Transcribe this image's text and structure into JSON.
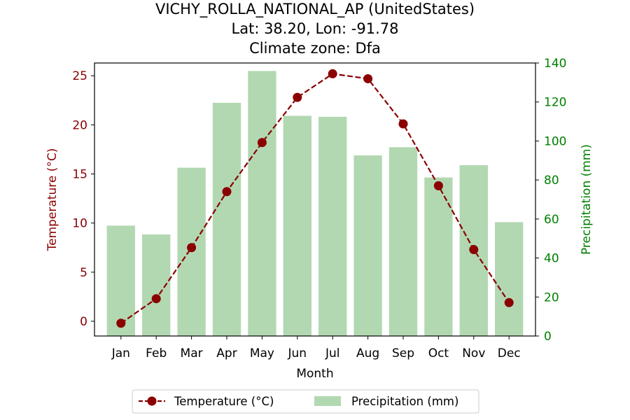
{
  "title": {
    "line1": "VICHY_ROLLA_NATIONAL_AP (UnitedStates)",
    "line2": "Lat: 38.20, Lon: -91.78",
    "line3": "Climate zone: Dfa"
  },
  "colors": {
    "temperature": "#8b0000",
    "precipitation_bar": "#b2d8b2",
    "precipitation_axis": "#008000",
    "axis": "#000000"
  },
  "chart_data": {
    "type": "bar+line",
    "categories": [
      "Jan",
      "Feb",
      "Mar",
      "Apr",
      "May",
      "Jun",
      "Jul",
      "Aug",
      "Sep",
      "Oct",
      "Nov",
      "Dec"
    ],
    "xlabel": "Month",
    "y_left": {
      "label": "Temperature (°C)",
      "range": [
        -1.5,
        26.3
      ],
      "ticks": [
        0,
        5,
        10,
        15,
        20,
        25
      ]
    },
    "y_right": {
      "label": "Precipitation (mm)",
      "range": [
        0,
        140
      ],
      "ticks": [
        0,
        20,
        40,
        60,
        80,
        100,
        120,
        140
      ]
    },
    "series": [
      {
        "name": "Temperature (°C)",
        "type": "line",
        "style": "dashed, circle markers",
        "axis": "left",
        "values": [
          -0.2,
          2.3,
          7.5,
          13.2,
          18.2,
          22.8,
          25.2,
          24.7,
          20.1,
          13.8,
          7.3,
          1.9
        ]
      },
      {
        "name": "Precipitation (mm)",
        "type": "bar",
        "axis": "right",
        "values": [
          56.6,
          52.1,
          86.3,
          119.6,
          135.9,
          112.9,
          112.4,
          92.6,
          96.8,
          81.3,
          87.6,
          58.4
        ]
      }
    ],
    "legend": {
      "placement": "bottom-center",
      "entries": [
        "Temperature (°C)",
        "Precipitation (mm)"
      ]
    },
    "grid": false
  }
}
